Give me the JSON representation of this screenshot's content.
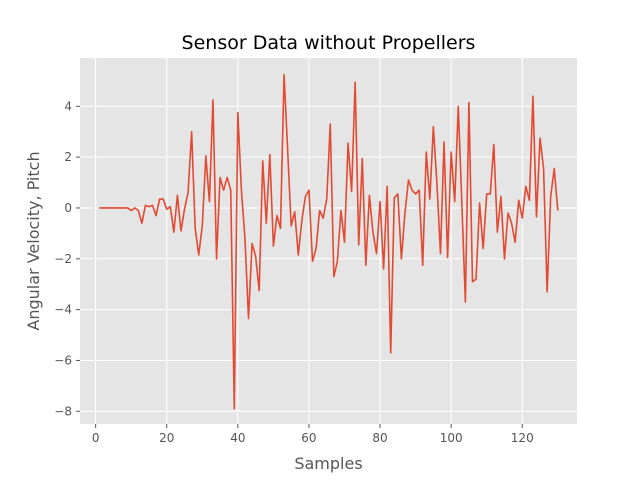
{
  "chart_data": {
    "type": "line",
    "title": "Sensor Data without Propellers",
    "xlabel": "Samples",
    "ylabel": "Angular Velocity, Pitch",
    "xlim": [
      -4.4,
      135.4
    ],
    "ylim": [
      -8.5,
      5.9
    ],
    "x_ticks": [
      0,
      20,
      40,
      60,
      80,
      100,
      120
    ],
    "y_ticks": [
      -8,
      -6,
      -4,
      -2,
      0,
      2,
      4
    ],
    "grid": true,
    "style": "ggplot",
    "colors": {
      "line": "#E24A33",
      "panel": "#E5E5E5",
      "grid": "#FFFFFF",
      "tick_text": "#555555",
      "text": "#000000"
    },
    "series": [
      {
        "x_start": 1,
        "values": [
          0.0,
          0.0,
          0.0,
          0.0,
          0.0,
          0.0,
          0.0,
          0.0,
          0.0,
          -0.1,
          0.0,
          -0.1,
          -0.6,
          0.1,
          0.05,
          0.1,
          -0.3,
          0.35,
          0.35,
          -0.05,
          0.05,
          -0.95,
          0.5,
          -0.9,
          -0.05,
          0.6,
          3.0,
          -0.8,
          -1.85,
          -0.7,
          2.05,
          0.25,
          4.25,
          -2.0,
          1.2,
          0.7,
          1.2,
          0.7,
          -7.9,
          3.75,
          0.7,
          -1.2,
          -4.35,
          -1.4,
          -1.9,
          -3.25,
          1.85,
          -0.6,
          2.1,
          -1.5,
          -0.3,
          -0.8,
          5.25,
          2.3,
          -0.7,
          -0.15,
          -1.85,
          -0.5,
          0.45,
          0.7,
          -2.1,
          -1.6,
          -0.1,
          -0.4,
          0.35,
          3.3,
          -2.7,
          -2.1,
          -0.1,
          -1.35,
          2.55,
          0.65,
          4.95,
          -1.45,
          1.95,
          -2.25,
          0.5,
          -0.95,
          -1.8,
          0.25,
          -2.4,
          0.85,
          -5.7,
          0.4,
          0.55,
          -2.0,
          -0.2,
          1.1,
          0.7,
          0.55,
          0.7,
          -2.25,
          2.2,
          0.35,
          3.2,
          0.95,
          -1.8,
          2.6,
          -1.95,
          2.2,
          0.25,
          4.0,
          0.2,
          -3.7,
          4.15,
          -2.9,
          -2.8,
          0.2,
          -1.6,
          0.55,
          0.55,
          2.5,
          -0.95,
          0.45,
          -2.0,
          -0.2,
          -0.6,
          -1.35,
          0.3,
          -0.4,
          0.85,
          0.3,
          4.4,
          -0.35,
          2.75,
          1.55,
          -3.3,
          0.45,
          1.55,
          -0.1
        ]
      }
    ]
  }
}
